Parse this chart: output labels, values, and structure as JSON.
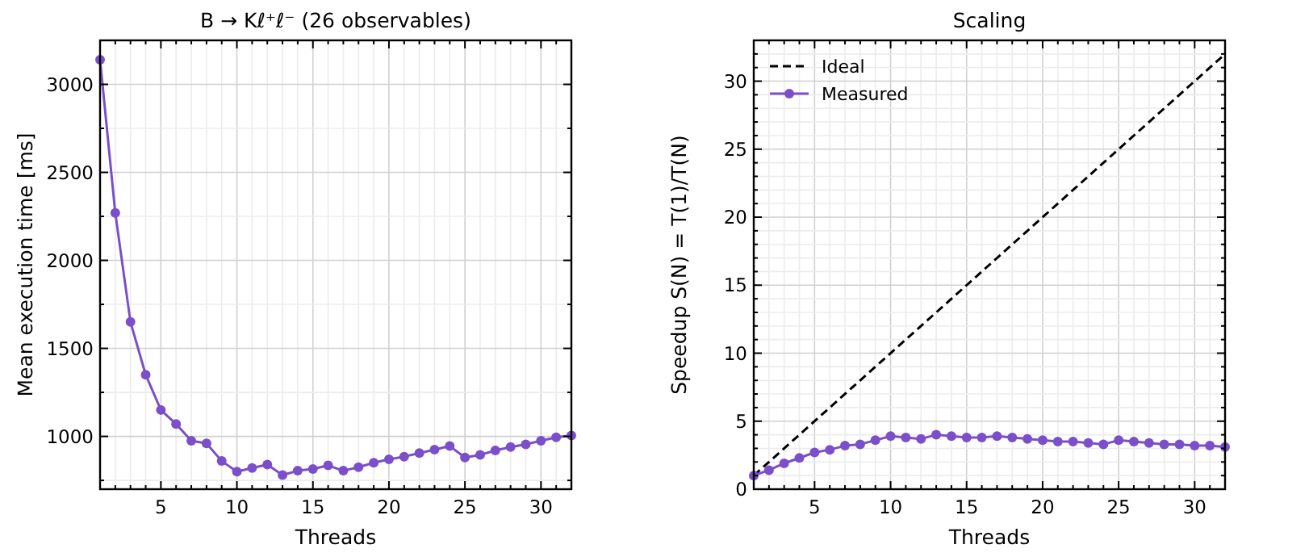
{
  "chart_data": [
    {
      "type": "line",
      "title": "B → Kℓ⁺ℓ⁻ (26 observables)",
      "xlabel": "Threads",
      "ylabel": "Mean execution time [ms]",
      "x": [
        1,
        2,
        3,
        4,
        5,
        6,
        7,
        8,
        9,
        10,
        11,
        12,
        13,
        14,
        15,
        16,
        17,
        18,
        19,
        20,
        21,
        22,
        23,
        24,
        25,
        26,
        27,
        28,
        29,
        30,
        31,
        32
      ],
      "series": [
        {
          "color": "#7b4fc9",
          "values": [
            3140,
            2270,
            1650,
            1350,
            1150,
            1070,
            975,
            960,
            860,
            800,
            820,
            840,
            780,
            805,
            815,
            835,
            805,
            825,
            850,
            870,
            885,
            905,
            925,
            945,
            880,
            895,
            920,
            940,
            955,
            975,
            995,
            1005
          ]
        }
      ],
      "xlim": [
        1,
        32
      ],
      "ylim": [
        700,
        3250
      ],
      "xticks": [
        {
          "value": 1,
          "label": null
        },
        {
          "value": 2,
          "label": null
        },
        {
          "value": 3,
          "label": null
        },
        {
          "value": 4,
          "label": null
        },
        5,
        {
          "value": 6,
          "label": null
        },
        {
          "value": 7,
          "label": null
        },
        {
          "value": 8,
          "label": null
        },
        {
          "value": 9,
          "label": null
        },
        10,
        {
          "value": 11,
          "label": null
        },
        {
          "value": 12,
          "label": null
        },
        {
          "value": 13,
          "label": null
        },
        {
          "value": 14,
          "label": null
        },
        15,
        {
          "value": 16,
          "label": null
        },
        {
          "value": 17,
          "label": null
        },
        {
          "value": 18,
          "label": null
        },
        {
          "value": 19,
          "label": null
        },
        20,
        {
          "value": 21,
          "label": null
        },
        {
          "value": 22,
          "label": null
        },
        {
          "value": 23,
          "label": null
        },
        {
          "value": 24,
          "label": null
        },
        25,
        {
          "value": 26,
          "label": null
        },
        {
          "value": 27,
          "label": null
        },
        {
          "value": 28,
          "label": null
        },
        {
          "value": 29,
          "label": null
        },
        30,
        {
          "value": 31,
          "label": null
        },
        {
          "value": 32,
          "label": null
        }
      ],
      "yticks": [
        {
          "value": 750,
          "label": null
        },
        1000,
        {
          "value": 1250,
          "label": null
        },
        1500,
        {
          "value": 1750,
          "label": null
        },
        2000,
        {
          "value": 2250,
          "label": null
        },
        2500,
        {
          "value": 2750,
          "label": null
        },
        3000,
        {
          "value": 3250,
          "label": null
        }
      ],
      "grid": true,
      "marker": "circle",
      "line_style": "solid",
      "legend": false
    },
    {
      "type": "line",
      "title": "Scaling",
      "xlabel": "Threads",
      "ylabel": "Speedup S(N) = T(1)/T(N)",
      "series": [
        {
          "name": "Ideal",
          "color": "#000000",
          "x": [
            1,
            32
          ],
          "values": [
            1,
            32
          ],
          "line_style": "dashed",
          "marker": "none"
        },
        {
          "name": "Measured",
          "color": "#7b4fc9",
          "x": [
            1,
            2,
            3,
            4,
            5,
            6,
            7,
            8,
            9,
            10,
            11,
            12,
            13,
            14,
            15,
            16,
            17,
            18,
            19,
            20,
            21,
            22,
            23,
            24,
            25,
            26,
            27,
            28,
            29,
            30,
            31,
            32
          ],
          "values": [
            1,
            1.4,
            1.9,
            2.3,
            2.7,
            2.9,
            3.2,
            3.3,
            3.6,
            3.9,
            3.8,
            3.7,
            4,
            3.9,
            3.8,
            3.8,
            3.9,
            3.8,
            3.7,
            3.6,
            3.5,
            3.5,
            3.4,
            3.3,
            3.6,
            3.5,
            3.4,
            3.3,
            3.3,
            3.2,
            3.2,
            3.1
          ],
          "line_style": "solid",
          "marker": "circle"
        }
      ],
      "xlim": [
        1,
        32
      ],
      "ylim": [
        0,
        33
      ],
      "xticks": [
        {
          "value": 1,
          "label": null
        },
        {
          "value": 2,
          "label": null
        },
        {
          "value": 3,
          "label": null
        },
        {
          "value": 4,
          "label": null
        },
        5,
        {
          "value": 6,
          "label": null
        },
        {
          "value": 7,
          "label": null
        },
        {
          "value": 8,
          "label": null
        },
        {
          "value": 9,
          "label": null
        },
        10,
        {
          "value": 11,
          "label": null
        },
        {
          "value": 12,
          "label": null
        },
        {
          "value": 13,
          "label": null
        },
        {
          "value": 14,
          "label": null
        },
        15,
        {
          "value": 16,
          "label": null
        },
        {
          "value": 17,
          "label": null
        },
        {
          "value": 18,
          "label": null
        },
        {
          "value": 19,
          "label": null
        },
        20,
        {
          "value": 21,
          "label": null
        },
        {
          "value": 22,
          "label": null
        },
        {
          "value": 23,
          "label": null
        },
        {
          "value": 24,
          "label": null
        },
        25,
        {
          "value": 26,
          "label": null
        },
        {
          "value": 27,
          "label": null
        },
        {
          "value": 28,
          "label": null
        },
        {
          "value": 29,
          "label": null
        },
        30,
        {
          "value": 31,
          "label": null
        },
        {
          "value": 32,
          "label": null
        }
      ],
      "yticks": [
        0,
        {
          "value": 1,
          "label": null
        },
        {
          "value": 2,
          "label": null
        },
        {
          "value": 3,
          "label": null
        },
        {
          "value": 4,
          "label": null
        },
        5,
        {
          "value": 6,
          "label": null
        },
        {
          "value": 7,
          "label": null
        },
        {
          "value": 8,
          "label": null
        },
        {
          "value": 9,
          "label": null
        },
        10,
        {
          "value": 11,
          "label": null
        },
        {
          "value": 12,
          "label": null
        },
        {
          "value": 13,
          "label": null
        },
        {
          "value": 14,
          "label": null
        },
        15,
        {
          "value": 16,
          "label": null
        },
        {
          "value": 17,
          "label": null
        },
        {
          "value": 18,
          "label": null
        },
        {
          "value": 19,
          "label": null
        },
        20,
        {
          "value": 21,
          "label": null
        },
        {
          "value": 22,
          "label": null
        },
        {
          "value": 23,
          "label": null
        },
        {
          "value": 24,
          "label": null
        },
        25,
        {
          "value": 26,
          "label": null
        },
        {
          "value": 27,
          "label": null
        },
        {
          "value": 28,
          "label": null
        },
        {
          "value": 29,
          "label": null
        },
        30,
        {
          "value": 31,
          "label": null
        },
        {
          "value": 32,
          "label": null
        },
        {
          "value": 33,
          "label": null
        }
      ],
      "grid": true,
      "legend": "top left"
    }
  ]
}
